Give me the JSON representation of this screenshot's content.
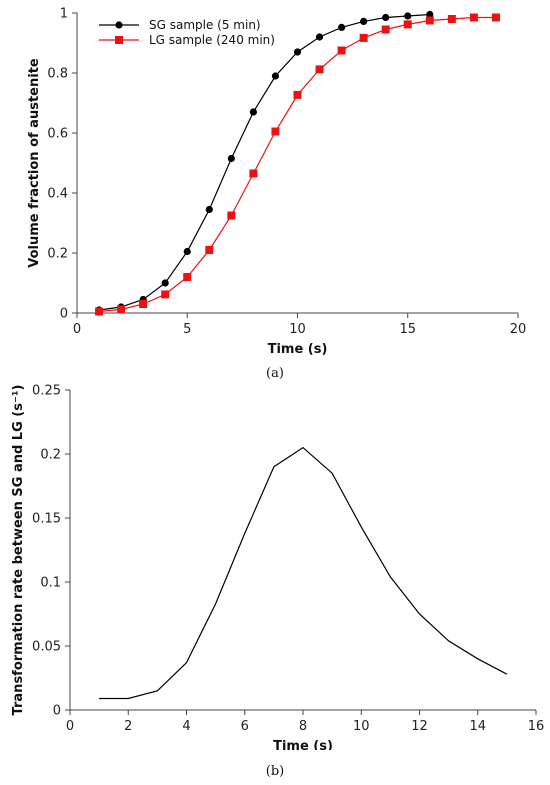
{
  "captions": {
    "a": "(a)",
    "b": "(b)"
  },
  "chart_data": [
    {
      "type": "line",
      "xlabel": "Time (s)",
      "ylabel": "Volume fraction of austenite",
      "xlim": [
        0,
        20
      ],
      "ylim": [
        0,
        1
      ],
      "xticks": [
        0,
        5,
        10,
        15,
        20
      ],
      "yticks": [
        0,
        0.2,
        0.4,
        0.6,
        0.8,
        1
      ],
      "ytick_labels": [
        "0",
        "0.2",
        "0.4",
        "0.6",
        "0.8",
        "1"
      ],
      "grid": false,
      "legend": "top-left",
      "series": [
        {
          "name": "SG sample (5 min)",
          "color": "#000000",
          "marker": "circle",
          "x": [
            1,
            2,
            3,
            4,
            5,
            6,
            7,
            8,
            9,
            10,
            11,
            12,
            13,
            14,
            15,
            16
          ],
          "y": [
            0.01,
            0.02,
            0.045,
            0.1,
            0.205,
            0.345,
            0.515,
            0.67,
            0.79,
            0.87,
            0.92,
            0.952,
            0.972,
            0.985,
            0.99,
            0.995
          ]
        },
        {
          "name": "LG sample (240 min)",
          "color": "#ee1111",
          "marker": "square",
          "x": [
            1,
            2,
            3,
            4,
            5,
            6,
            7,
            8,
            9,
            10,
            11,
            12,
            13,
            14,
            15,
            16,
            17,
            18,
            19
          ],
          "y": [
            0.005,
            0.012,
            0.03,
            0.062,
            0.12,
            0.21,
            0.325,
            0.465,
            0.605,
            0.727,
            0.812,
            0.875,
            0.917,
            0.945,
            0.962,
            0.975,
            0.98,
            0.985,
            0.985
          ]
        }
      ]
    },
    {
      "type": "line",
      "xlabel": "Time (s)",
      "ylabel": "Transformation rate between SG and LG (s⁻¹)",
      "xlim": [
        0,
        16
      ],
      "ylim": [
        0,
        0.25
      ],
      "xticks": [
        0,
        2,
        4,
        6,
        8,
        10,
        12,
        14,
        16
      ],
      "yticks": [
        0,
        0.05,
        0.1,
        0.15,
        0.2,
        0.25
      ],
      "ytick_labels": [
        "0",
        "0.05",
        "0.1",
        "0.15",
        "0.2",
        "0.25"
      ],
      "grid": false,
      "legend": "none",
      "series": [
        {
          "color": "#000000",
          "marker": "none",
          "x": [
            1,
            2,
            3,
            4,
            5,
            6,
            7,
            8,
            9,
            10,
            11,
            12,
            13,
            14,
            15
          ],
          "y": [
            0.009,
            0.009,
            0.015,
            0.037,
            0.083,
            0.138,
            0.19,
            0.205,
            0.185,
            0.143,
            0.104,
            0.075,
            0.054,
            0.04,
            0.028
          ]
        }
      ]
    }
  ]
}
